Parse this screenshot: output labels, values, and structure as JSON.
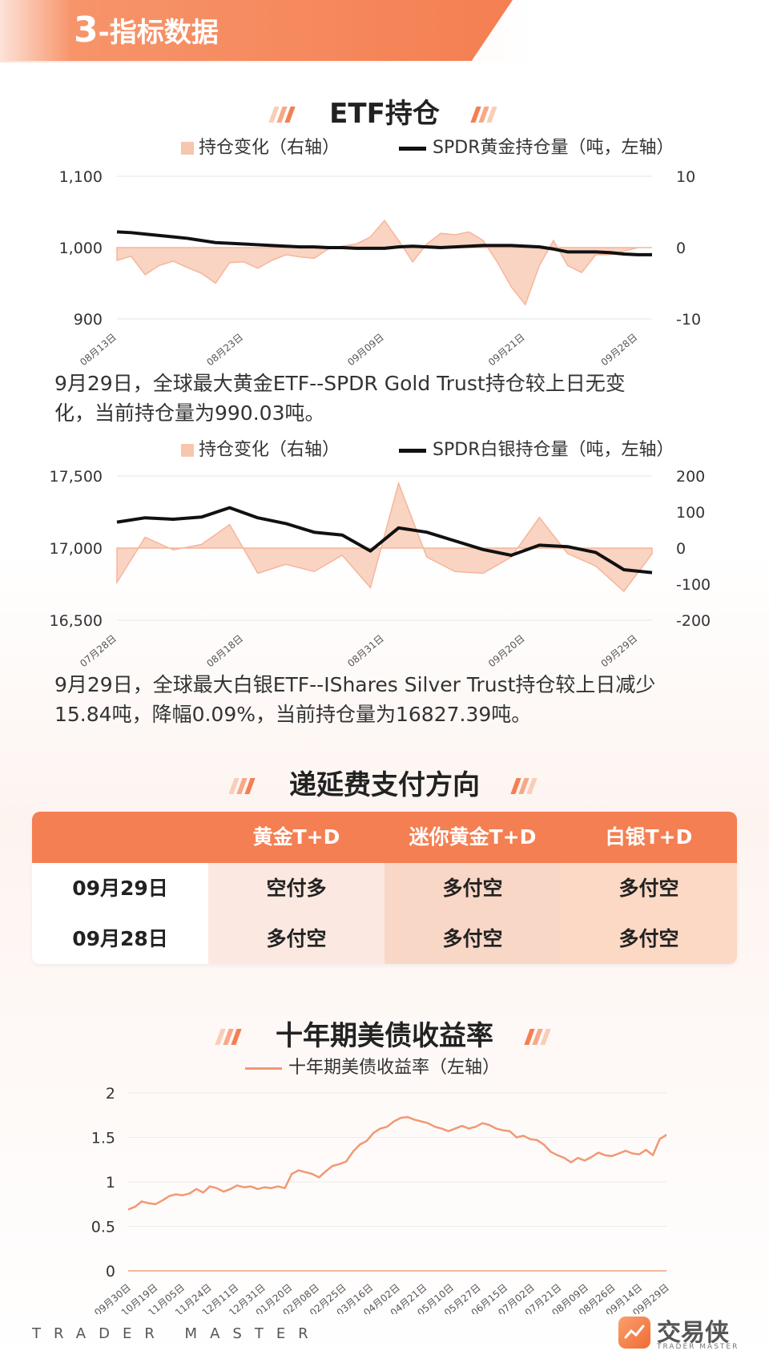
{
  "header": {
    "number": "3",
    "title": "-指标数据"
  },
  "sections": {
    "etf": "ETF持仓",
    "contango": "递延费支付方向",
    "treasury": "十年期美债收益率"
  },
  "footer": {
    "brand_en": "TRADER MASTER",
    "logo_cn": "交易侠",
    "logo_en": "TRADER MASTER"
  },
  "colors": {
    "accent": "#f47f52",
    "area": "#f7c6ae",
    "line": "#111111",
    "treasury_line": "#f29873"
  },
  "chart_data": [
    {
      "type": "line",
      "subtype": "line-with-area",
      "legend": {
        "bar": "持仓变化（右轴）",
        "line": "SPDR黄金持仓量（吨，左轴）"
      },
      "x_ticks": [
        "08月13日",
        "08月23日",
        "09月09日",
        "09月21日",
        "09月28日"
      ],
      "x_tick_index": [
        0,
        9,
        19,
        29,
        37
      ],
      "y_left": {
        "min": 900,
        "max": 1100,
        "ticks": [
          "1,100",
          "1,000",
          "900"
        ],
        "tick_values": [
          1100,
          1000,
          900
        ]
      },
      "y_right": {
        "min": -10,
        "max": 10,
        "ticks": [
          "10",
          "0",
          "-10"
        ],
        "tick_values": [
          10,
          0,
          -10
        ]
      },
      "line_values": [
        1022,
        1021,
        1019,
        1017,
        1015,
        1013,
        1010,
        1007,
        1006,
        1005,
        1004,
        1003,
        1002,
        1001,
        1001,
        1000,
        1000,
        999,
        999,
        999,
        1001,
        1002,
        1001,
        1000,
        1001,
        1002,
        1003,
        1003,
        1003,
        1002,
        1001,
        998,
        994,
        994,
        994,
        993,
        991,
        990.03,
        990.03
      ],
      "change_values": [
        -1.8,
        -1.2,
        -3.8,
        -2.5,
        -1.9,
        -2.8,
        -3.6,
        -5.0,
        -2.1,
        -2.0,
        -2.9,
        -1.8,
        -1.0,
        -1.3,
        -1.5,
        -0.2,
        0.2,
        0.5,
        1.5,
        3.8,
        1.0,
        -2.0,
        0.5,
        2.0,
        1.8,
        2.2,
        1.0,
        -2.0,
        -5.5,
        -8.0,
        -2.5,
        1.0,
        -2.5,
        -3.5,
        -1.0,
        -1.0,
        -0.5,
        0.0,
        0.0
      ]
    },
    {
      "type": "line",
      "subtype": "line-with-area",
      "legend": {
        "bar": "持仓变化（右轴）",
        "line": "SPDR白银持仓量（吨，左轴）"
      },
      "x_ticks": [
        "07月28日",
        "08月18日",
        "08月31日",
        "09月20日",
        "09月29日"
      ],
      "x_tick_index": [
        0,
        9,
        19,
        29,
        37
      ],
      "y_left": {
        "min": 16500,
        "max": 17500,
        "ticks": [
          "17,500",
          "17,000",
          "16,500"
        ],
        "tick_values": [
          17500,
          17000,
          16500
        ]
      },
      "y_right": {
        "min": -200,
        "max": 200,
        "ticks": [
          "200",
          "100",
          "0",
          "-100",
          "-200"
        ],
        "tick_values": [
          200,
          100,
          0,
          -100,
          -200
        ]
      },
      "line_values": [
        17180,
        17210,
        17200,
        17215,
        17280,
        17210,
        17170,
        17110,
        17090,
        16980,
        17140,
        17110,
        17050,
        16990,
        16950,
        17020,
        17010,
        16970,
        16850,
        16830
      ],
      "line_index": [
        0,
        2,
        4,
        6,
        8,
        10,
        12,
        14,
        16,
        18,
        20,
        22,
        24,
        26,
        28,
        30,
        32,
        34,
        36,
        38
      ],
      "change_values": [
        -95,
        30,
        -5,
        10,
        65,
        -70,
        -45,
        -65,
        -20,
        -110,
        180,
        -25,
        -65,
        -70,
        -25,
        85,
        -15,
        -50,
        -120,
        -15.84
      ],
      "change_index": [
        0,
        2,
        4,
        6,
        8,
        10,
        12,
        14,
        16,
        18,
        20,
        22,
        24,
        26,
        28,
        30,
        32,
        34,
        36,
        38
      ]
    },
    {
      "type": "line",
      "legend": "十年期美债收益率（左轴）",
      "y": {
        "min": 0,
        "max": 2,
        "ticks": [
          "2",
          "1.5",
          "1",
          "0.5",
          "0"
        ],
        "tick_values": [
          2,
          1.5,
          1,
          0.5,
          0
        ]
      },
      "x_ticks": [
        "09月30日",
        "10月19日",
        "11月05日",
        "11月24日",
        "12月11日",
        "12月31日",
        "01月20日",
        "02月08日",
        "02月25日",
        "03月16日",
        "04月02日",
        "04月21日",
        "05月10日",
        "05月27日",
        "06月15日",
        "07月02日",
        "07月21日",
        "08月09日",
        "08月26日",
        "09月14日",
        "09月29日"
      ],
      "values": [
        0.69,
        0.72,
        0.78,
        0.76,
        0.75,
        0.79,
        0.84,
        0.86,
        0.85,
        0.87,
        0.92,
        0.88,
        0.95,
        0.93,
        0.89,
        0.92,
        0.96,
        0.94,
        0.95,
        0.92,
        0.94,
        0.93,
        0.95,
        0.93,
        1.09,
        1.13,
        1.11,
        1.09,
        1.05,
        1.12,
        1.18,
        1.2,
        1.23,
        1.34,
        1.42,
        1.46,
        1.55,
        1.6,
        1.62,
        1.68,
        1.72,
        1.73,
        1.7,
        1.68,
        1.66,
        1.62,
        1.6,
        1.57,
        1.6,
        1.63,
        1.6,
        1.62,
        1.66,
        1.64,
        1.6,
        1.58,
        1.57,
        1.5,
        1.52,
        1.48,
        1.47,
        1.42,
        1.34,
        1.3,
        1.27,
        1.22,
        1.27,
        1.24,
        1.28,
        1.33,
        1.3,
        1.29,
        1.32,
        1.35,
        1.32,
        1.31,
        1.36,
        1.3,
        1.48,
        1.53
      ]
    }
  ],
  "texts": {
    "gold_note": [
      "9月29日，全球最大黄金ETF--SPDR Gold Trust持仓较上日无变",
      "化，当前持仓量为990.03吨。"
    ],
    "silver_note": [
      "9月29日，全球最大白银ETF--IShares Silver Trust持仓较上日减少",
      "15.84吨，降幅0.09%，当前持仓量为16827.39吨。"
    ]
  },
  "table": {
    "headers": [
      "",
      "黄金T+D",
      "迷你黄金T+D",
      "白银T+D"
    ],
    "rows": [
      {
        "date": "09月29日",
        "cells": [
          "空付多",
          "多付空",
          "多付空"
        ]
      },
      {
        "date": "09月28日",
        "cells": [
          "多付空",
          "多付空",
          "多付空"
        ]
      }
    ]
  }
}
